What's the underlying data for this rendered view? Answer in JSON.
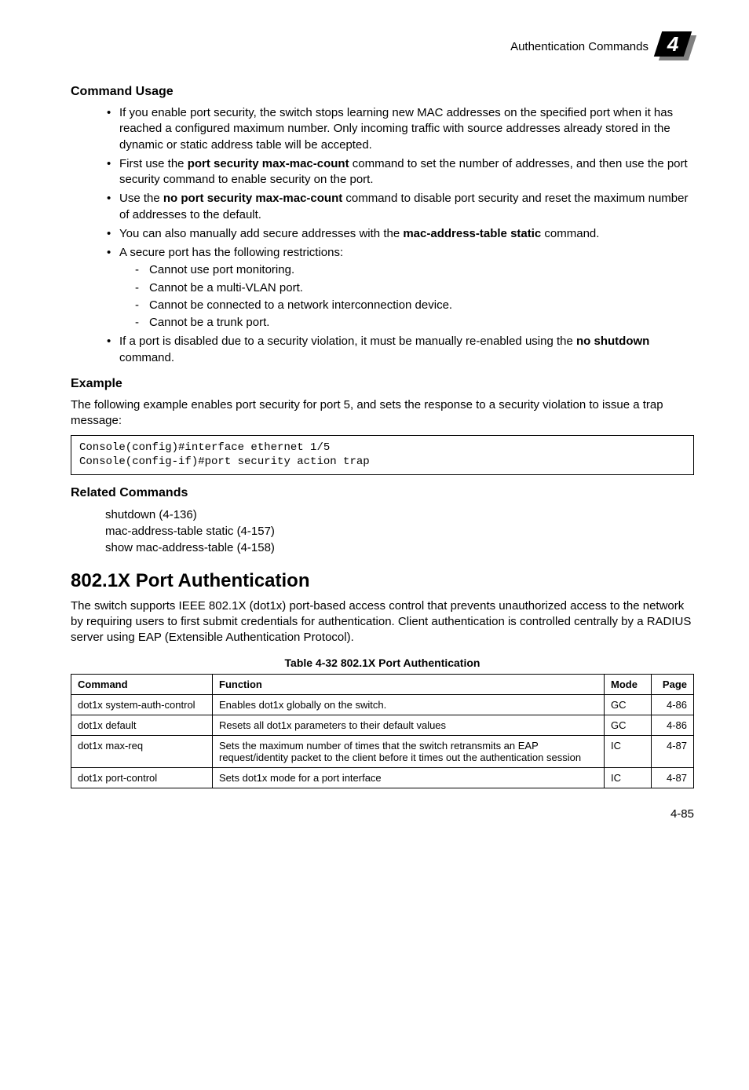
{
  "header": {
    "text": "Authentication Commands",
    "badge_number": "4"
  },
  "sections": {
    "command_usage": {
      "heading": "Command Usage",
      "bullets": [
        {
          "text_parts": [
            "If you enable port security, the switch stops learning new MAC addresses on the specified port when it has reached a configured maximum number. Only incoming traffic with source addresses already stored in the dynamic or static address table will be accepted."
          ]
        },
        {
          "text_parts": [
            "First use the ",
            {
              "bold": "port security max-mac-count"
            },
            " command to set the number of addresses, and then use the port security command to enable security on the port."
          ]
        },
        {
          "text_parts": [
            "Use the ",
            {
              "bold": "no port security max-mac-count"
            },
            " command to disable port security and reset the maximum number of addresses to the default."
          ]
        },
        {
          "text_parts": [
            "You can also manually add secure addresses with the ",
            {
              "bold": "mac-address-table static"
            },
            " command."
          ]
        },
        {
          "text_parts": [
            "A secure port has the following restrictions:"
          ],
          "sub": [
            "Cannot use port monitoring.",
            "Cannot be a multi-VLAN port.",
            "Cannot be connected to a network interconnection device.",
            "Cannot be a trunk port."
          ]
        },
        {
          "text_parts": [
            "If a port is disabled due to a security violation, it must be manually re-enabled using the ",
            {
              "bold": "no shutdown"
            },
            " command."
          ]
        }
      ]
    },
    "example": {
      "heading": "Example",
      "intro": "The following example enables port security for port 5, and sets the response to a security violation to issue a trap message:",
      "code": "Console(config)#interface ethernet 1/5\nConsole(config-if)#port security action trap"
    },
    "related": {
      "heading": "Related Commands",
      "items": [
        "shutdown (4-136)",
        "mac-address-table static (4-157)",
        "show mac-address-table (4-158)"
      ]
    },
    "port_auth": {
      "heading": "802.1X Port Authentication",
      "intro": "The switch supports IEEE 802.1X (dot1x) port-based access control that prevents unauthorized access to the network by requiring users to first submit credentials for authentication. Client authentication is controlled centrally by a RADIUS server using EAP (Extensible Authentication Protocol).",
      "table_caption": "Table 4-32  802.1X Port Authentication",
      "table": {
        "headers": [
          "Command",
          "Function",
          "Mode",
          "Page"
        ],
        "rows": [
          [
            "dot1x system-auth-control",
            "Enables dot1x globally on the switch.",
            "GC",
            "4-86"
          ],
          [
            "dot1x default",
            "Resets all dot1x parameters to their default values",
            "GC",
            "4-86"
          ],
          [
            "dot1x max-req",
            "Sets the maximum number of times that the switch retransmits an EAP request/identity packet to the client before it times out the authentication session",
            "IC",
            "4-87"
          ],
          [
            "dot1x port-control",
            "Sets dot1x mode for a port interface",
            "IC",
            "4-87"
          ]
        ]
      }
    }
  },
  "footer": {
    "page_number": "4-85"
  }
}
